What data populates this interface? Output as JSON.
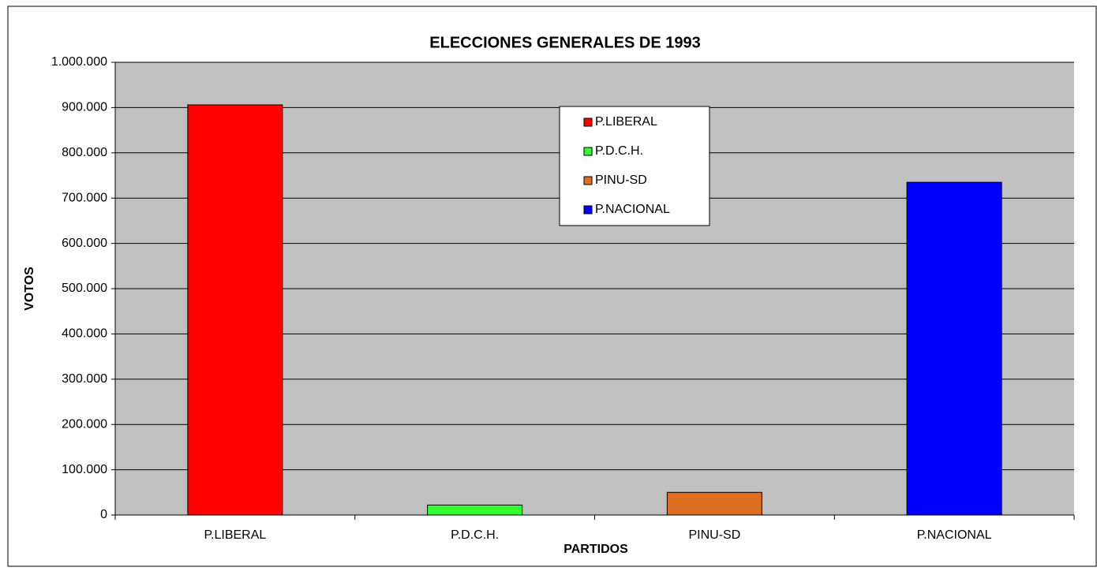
{
  "chart_data": {
    "type": "bar",
    "title": "ELECCIONES GENERALES DE 1993",
    "x_label": "PARTIDOS",
    "y_label": "VOTOS",
    "categories": [
      "P.LIBERAL",
      "P.D.C.H.",
      "PINU-SD",
      "P.NACIONAL"
    ],
    "values": [
      906000,
      22000,
      50000,
      735000
    ],
    "colors": [
      "#ff0000",
      "#33ff33",
      "#dd6f22",
      "#0000ff"
    ],
    "ylim": [
      0,
      1000000
    ],
    "yticks": [
      0,
      {
        "value": 100000,
        "label": "100.000"
      },
      {
        "value": 200000,
        "label": "200.000"
      },
      {
        "value": 300000,
        "label": "300.000"
      },
      {
        "value": 400000,
        "label": "400.000"
      },
      {
        "value": 500000,
        "label": "500.000"
      },
      {
        "value": 600000,
        "label": "600.000"
      },
      {
        "value": 700000,
        "label": "700.000"
      },
      {
        "value": 800000,
        "label": "800.000"
      },
      {
        "value": 900000,
        "label": "900.000"
      },
      {
        "value": 1000000,
        "label": "1.000.000"
      }
    ],
    "grid": true,
    "legend": "top-center"
  }
}
